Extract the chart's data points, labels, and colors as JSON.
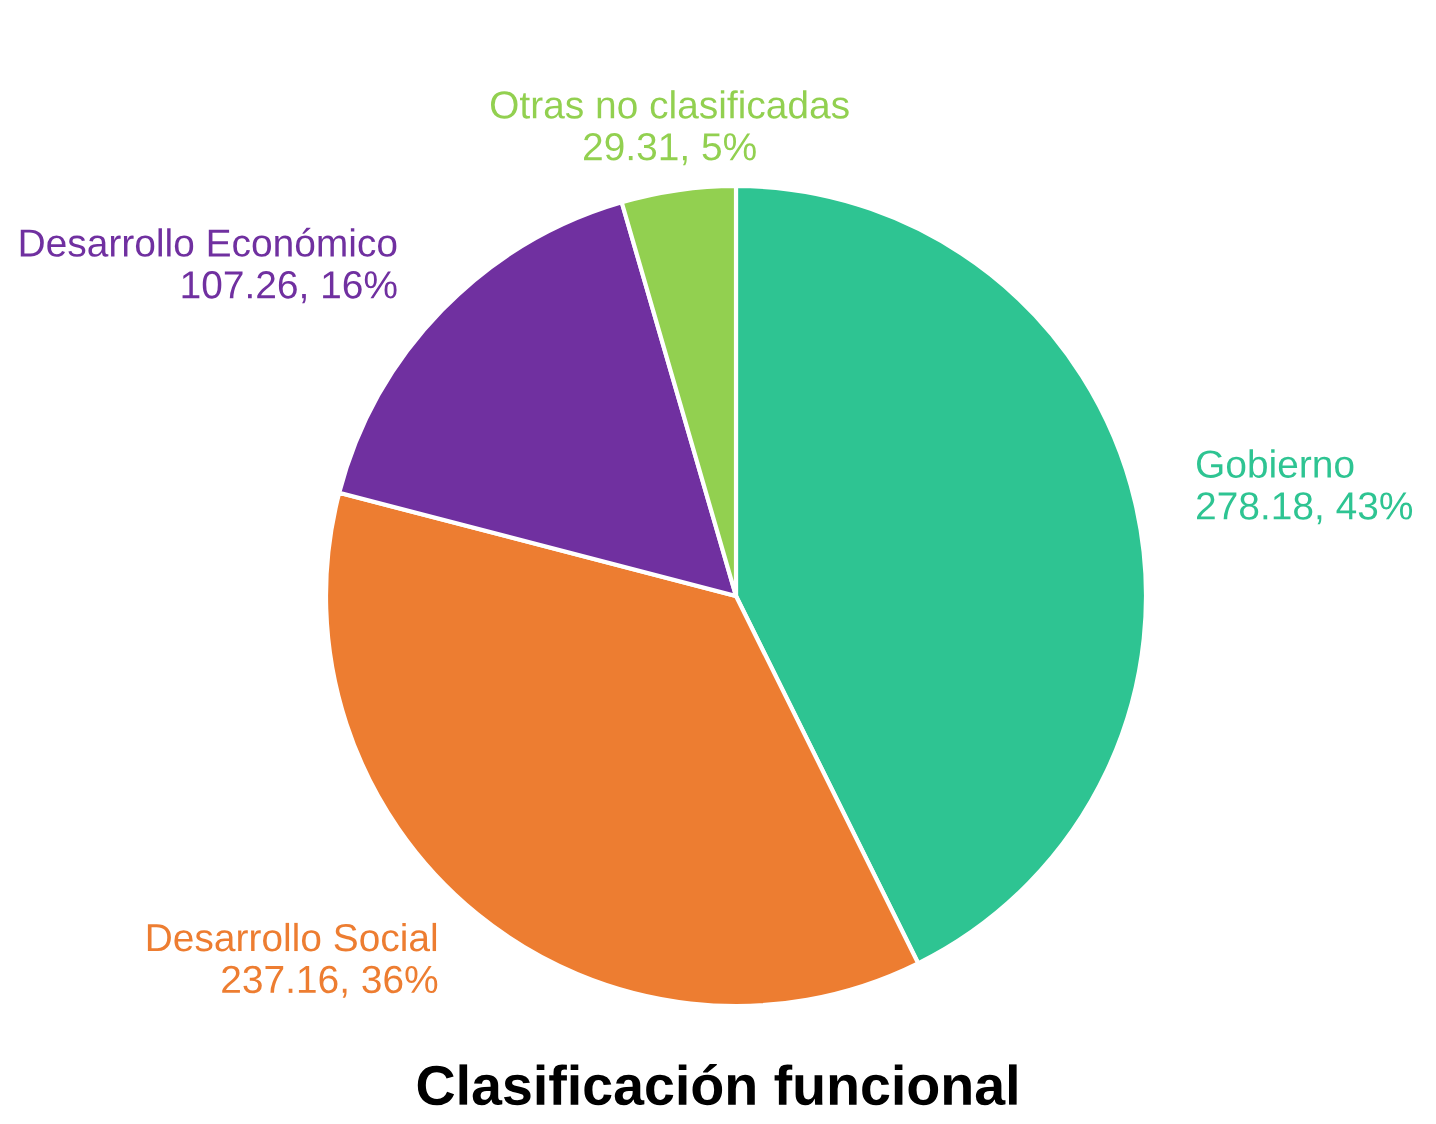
{
  "chart_data": {
    "type": "pie",
    "title": "Clasificación funcional",
    "categories": [
      "Gobierno",
      "Desarrollo Social",
      "Desarrollo Económico",
      "Otras no clasificadas"
    ],
    "values": [
      278.18,
      237.16,
      107.26,
      29.31
    ],
    "value_labels": [
      "278.18, 43%",
      "237.16, 36%",
      "107.26, 16%",
      "29.31, 5%"
    ],
    "colors": [
      "#2ec492",
      "#ed7d31",
      "#7030a0",
      "#92d050"
    ],
    "legend": false
  }
}
